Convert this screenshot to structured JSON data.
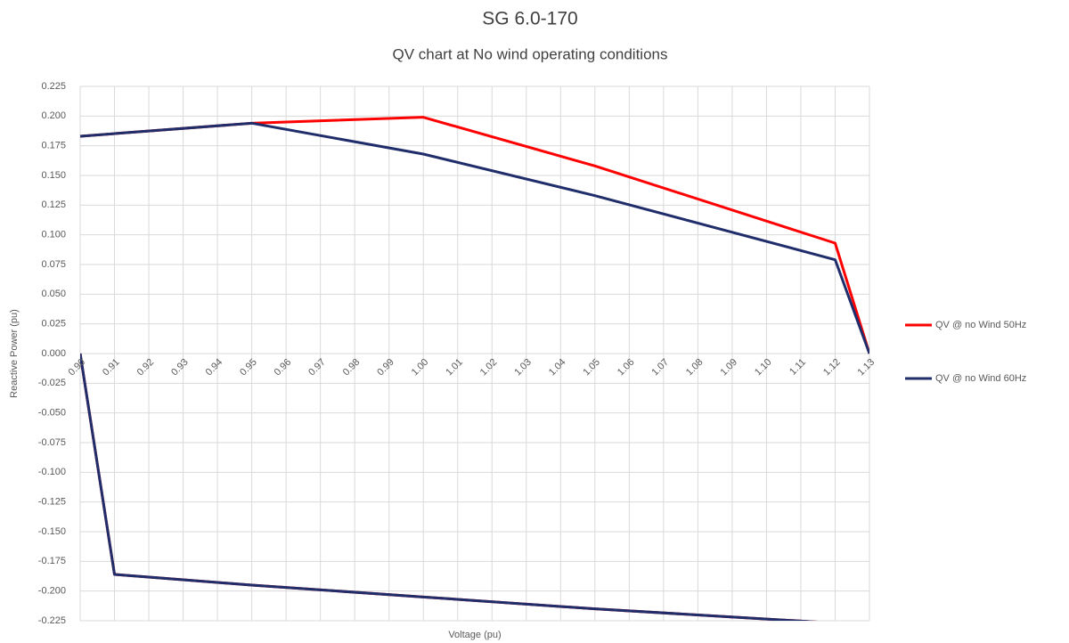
{
  "chart_data": {
    "type": "line",
    "title": "SG 6.0-170",
    "subtitle": "QV chart at No wind operating conditions",
    "x_label": "Voltage (pu)",
    "y_label": "Reactive Power (pu)",
    "x": [
      0.9,
      0.95,
      1.0,
      1.05,
      1.12,
      1.13,
      null,
      0.9,
      0.91,
      0.95,
      1.0,
      1.05,
      1.12
    ],
    "series": [
      {
        "name": "QV @ no Wind 50Hz",
        "color": "#ff0000",
        "values": [
          0.183,
          0.194,
          0.199,
          0.158,
          0.093,
          0,
          null,
          0,
          -0.186,
          -0.195,
          -0.205,
          -0.215,
          -0.227
        ]
      },
      {
        "name": "QV @ no Wind 60Hz",
        "color": "#1f2d6b",
        "values": [
          0.183,
          0.194,
          0.168,
          0.133,
          0.079,
          0,
          null,
          0,
          -0.186,
          -0.195,
          -0.205,
          -0.215,
          -0.227
        ]
      }
    ],
    "xlim": [
      0.9,
      1.13
    ],
    "ylim": [
      -0.225,
      0.225
    ],
    "xticks": [
      {
        "value": 0.9,
        "label": "0.90"
      },
      {
        "value": 0.91,
        "label": "0.91"
      },
      {
        "value": 0.92,
        "label": "0.92"
      },
      {
        "value": 0.93,
        "label": "0.93"
      },
      {
        "value": 0.94,
        "label": "0.94"
      },
      {
        "value": 0.95,
        "label": "0.95"
      },
      {
        "value": 0.96,
        "label": "0.96"
      },
      {
        "value": 0.97,
        "label": "0.97"
      },
      {
        "value": 0.98,
        "label": "0.98"
      },
      {
        "value": 0.99,
        "label": "0.99"
      },
      {
        "value": 1.0,
        "label": "1.00"
      },
      {
        "value": 1.01,
        "label": "1.01"
      },
      {
        "value": 1.02,
        "label": "1.02"
      },
      {
        "value": 1.03,
        "label": "1.03"
      },
      {
        "value": 1.04,
        "label": "1.04"
      },
      {
        "value": 1.05,
        "label": "1.05"
      },
      {
        "value": 1.06,
        "label": "1.06"
      },
      {
        "value": 1.07,
        "label": "1.07"
      },
      {
        "value": 1.08,
        "label": "1.08"
      },
      {
        "value": 1.09,
        "label": "1.09"
      },
      {
        "value": 1.1,
        "label": "1.10"
      },
      {
        "value": 1.11,
        "label": "1.11"
      },
      {
        "value": 1.12,
        "label": "1.12"
      },
      {
        "value": 1.13,
        "label": "1.13"
      }
    ],
    "yticks": [
      {
        "value": 0.225,
        "label": "0.225"
      },
      {
        "value": 0.2,
        "label": "0.200"
      },
      {
        "value": 0.175,
        "label": "0.175"
      },
      {
        "value": 0.15,
        "label": "0.150"
      },
      {
        "value": 0.125,
        "label": "0.125"
      },
      {
        "value": 0.1,
        "label": "0.100"
      },
      {
        "value": 0.075,
        "label": "0.075"
      },
      {
        "value": 0.05,
        "label": "0.050"
      },
      {
        "value": 0.025,
        "label": "0.025"
      },
      {
        "value": 0,
        "label": "0.000"
      },
      {
        "value": -0.025,
        "label": "-0.025"
      },
      {
        "value": -0.05,
        "label": "-0.050"
      },
      {
        "value": -0.075,
        "label": "-0.075"
      },
      {
        "value": -0.1,
        "label": "-0.100"
      },
      {
        "value": -0.125,
        "label": "-0.125"
      },
      {
        "value": -0.15,
        "label": "-0.150"
      },
      {
        "value": -0.175,
        "label": "-0.175"
      },
      {
        "value": -0.2,
        "label": "-0.200"
      },
      {
        "value": -0.225,
        "label": "-0.225"
      }
    ],
    "grid": true
  }
}
